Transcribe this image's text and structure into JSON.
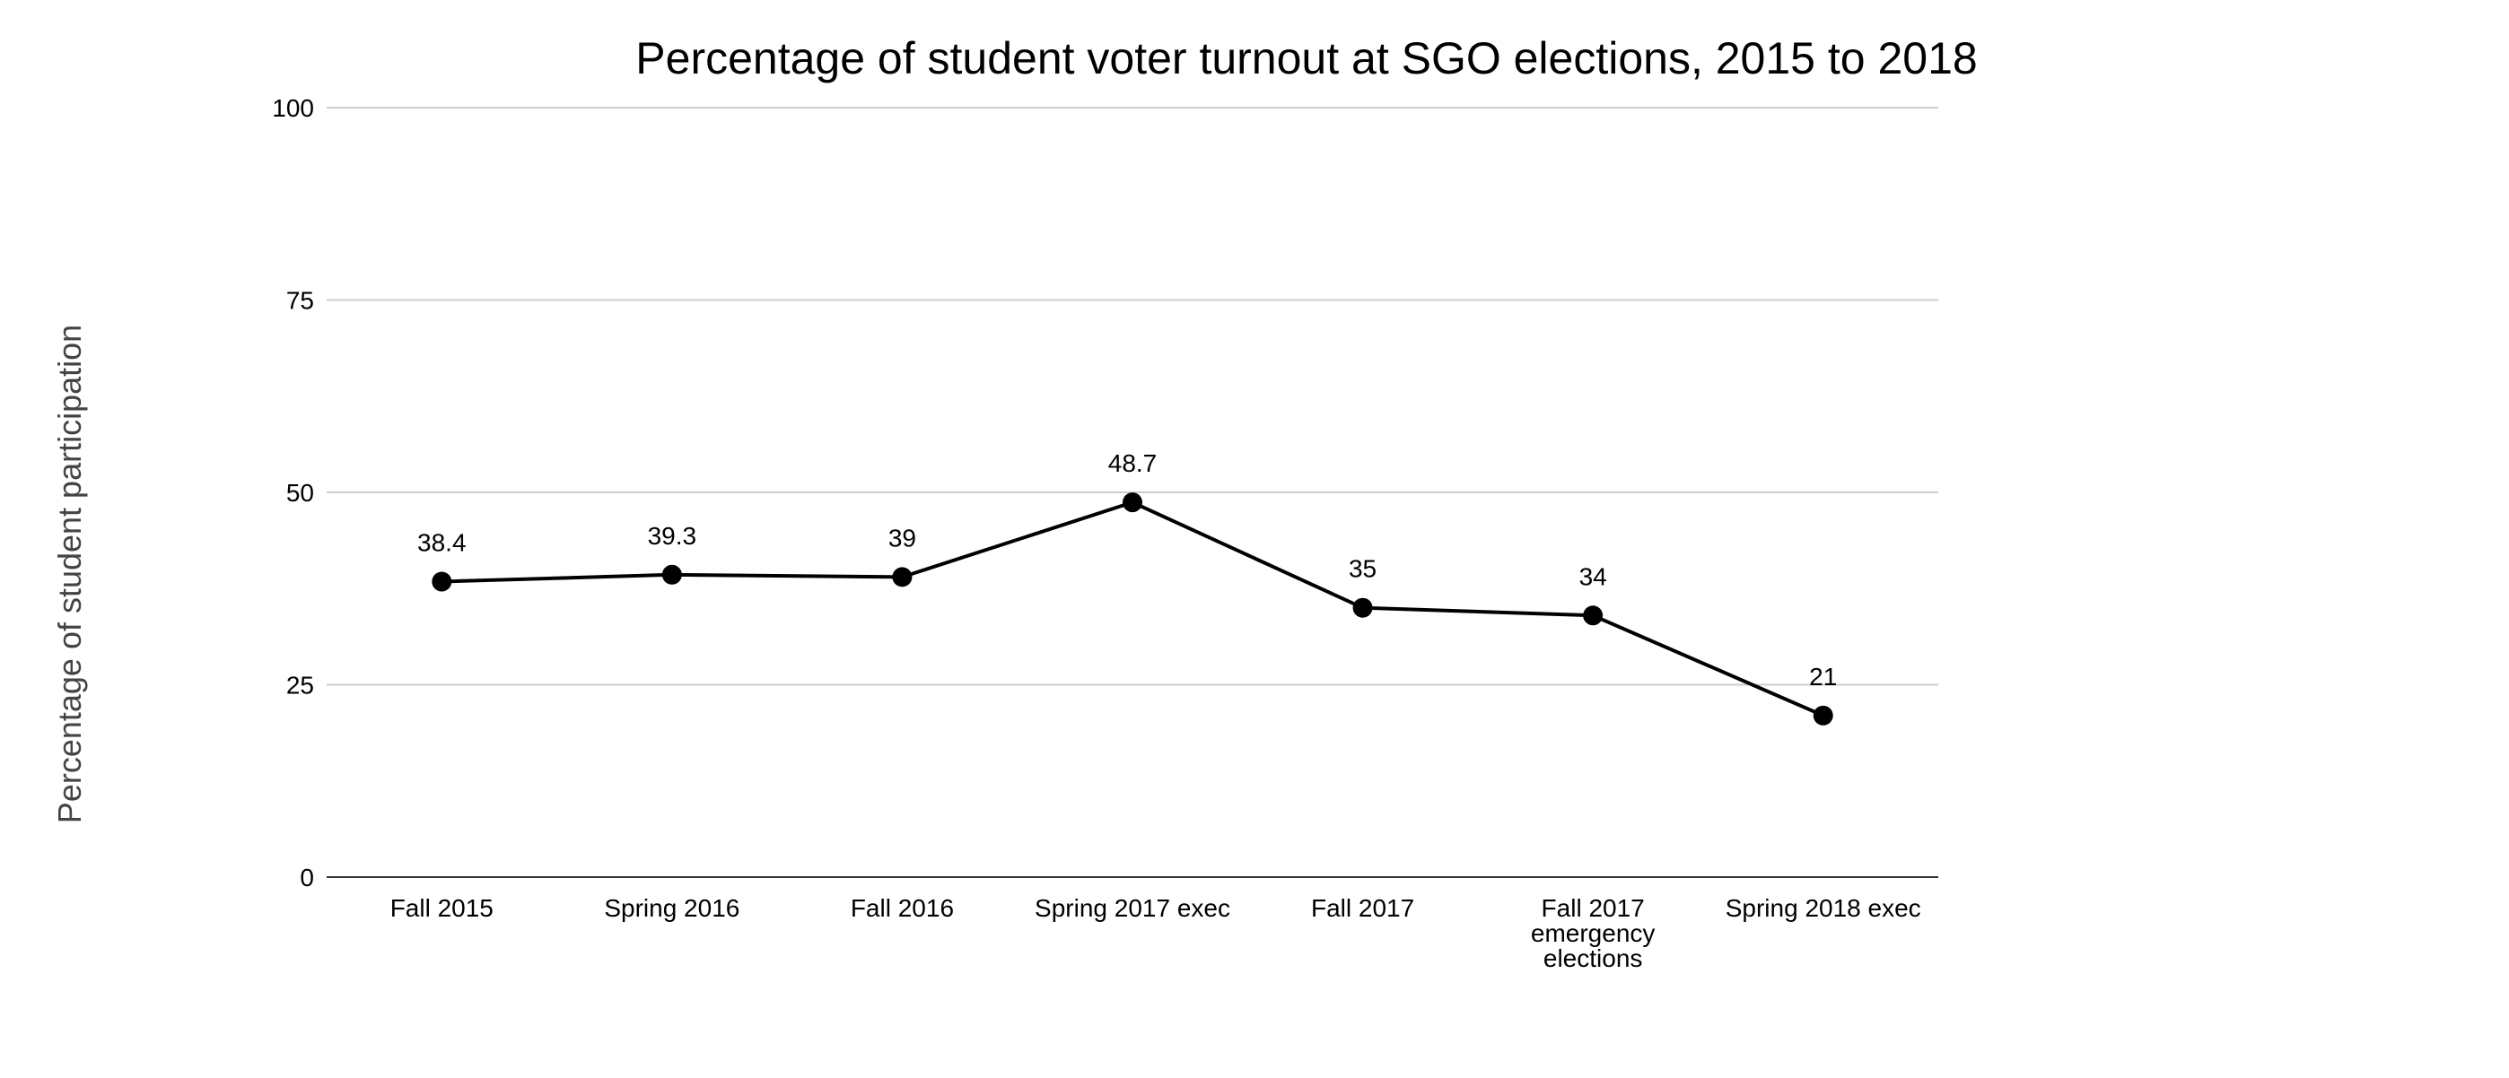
{
  "chart_data": {
    "type": "line",
    "title": "Percentage of student voter turnout at SGO elections, 2015 to 2018",
    "xlabel": "",
    "ylabel": "Percentage of student participation",
    "ylim": [
      0,
      100
    ],
    "yticks": [
      0,
      25,
      50,
      75,
      100
    ],
    "grid": true,
    "legend": "none",
    "categories": [
      [
        "Fall 2015"
      ],
      [
        "Spring 2016"
      ],
      [
        "Fall 2016"
      ],
      [
        "Spring 2017 exec"
      ],
      [
        "Fall 2017"
      ],
      [
        "Fall 2017",
        "emergency",
        "elections"
      ],
      [
        "Spring 2018 exec"
      ]
    ],
    "values": [
      38.4,
      39.3,
      39,
      48.7,
      35,
      34,
      21
    ],
    "data_labels": [
      "38.4",
      "39.3",
      "39",
      "48.7",
      "35",
      "34",
      "21"
    ],
    "colors": {
      "line": "#000000",
      "marker": "#000000",
      "grid": "#cccccc",
      "axis": "#333333",
      "ylabel": "#444444"
    }
  }
}
